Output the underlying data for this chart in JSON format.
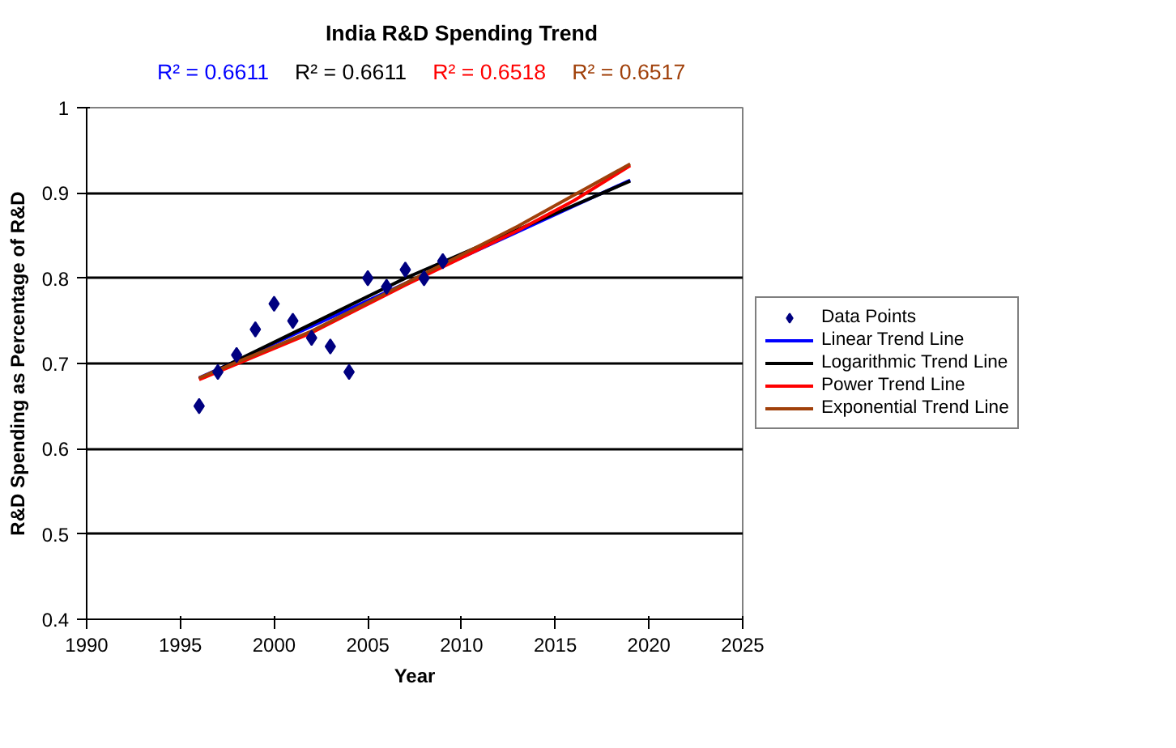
{
  "chart_data": {
    "type": "scatter",
    "title": "India R&D Spending Trend",
    "xlabel": "Year",
    "ylabel": "R&D Spending as Percentage of R&D",
    "annotations": [
      "R² = 0.6611",
      "R² = 0.6611",
      "R² = 0.6518",
      "R² = 0.6517"
    ],
    "xlim": [
      1990,
      2025
    ],
    "xticks": [
      1990,
      1995,
      2000,
      2005,
      2010,
      2015,
      2020,
      2025
    ],
    "ylim": [
      0.4,
      1
    ],
    "yticks": [
      0.4,
      0.5,
      0.6,
      0.7,
      0.8,
      0.9,
      1
    ],
    "grid": "y",
    "legend": "right",
    "series": [
      {
        "name": "Data Points",
        "marker": "diamond",
        "color": "#000080",
        "x": [
          1996,
          1997,
          1998,
          1999,
          2000,
          2001,
          2002,
          2003,
          2004,
          2005,
          2006,
          2007,
          2008,
          2009
        ],
        "values": [
          0.65,
          0.69,
          0.71,
          0.74,
          0.77,
          0.75,
          0.73,
          0.72,
          0.69,
          0.8,
          0.79,
          0.81,
          0.8,
          0.82
        ]
      },
      {
        "name": "Linear Trend Line",
        "type": "line",
        "color": "#0000ff",
        "x": [
          1996,
          2019
        ],
        "values": [
          0.683,
          0.915
        ]
      },
      {
        "name": "Logarithmic Trend Line",
        "type": "line",
        "color": "#000000",
        "x": [
          1996,
          2007,
          2019
        ],
        "values": [
          0.682,
          0.8,
          0.914
        ]
      },
      {
        "name": "Power Trend Line",
        "type": "line",
        "color": "#ff0000",
        "x": [
          1996,
          2002,
          2007,
          2013,
          2016,
          2019
        ],
        "values": [
          0.681,
          0.736,
          0.792,
          0.856,
          0.891,
          0.932
        ]
      },
      {
        "name": "Exponential Trend Line",
        "type": "line",
        "color": "#a0400a",
        "x": [
          1996,
          2002,
          2007,
          2013,
          2019
        ],
        "values": [
          0.683,
          0.738,
          0.794,
          0.861,
          0.934
        ]
      }
    ]
  }
}
